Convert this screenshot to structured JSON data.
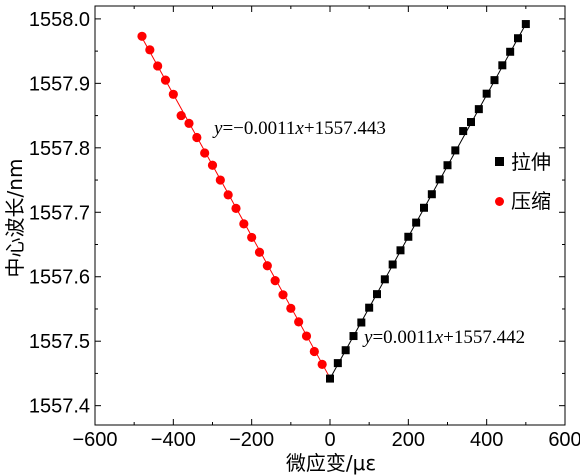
{
  "chart_data": {
    "type": "scatter",
    "xlabel": "微应变/με",
    "ylabel": "中心波长/nm",
    "xlim": [
      -600,
      600
    ],
    "ylim": [
      1557.37,
      1558.02
    ],
    "x_ticks": [
      -600,
      -400,
      -200,
      0,
      200,
      400,
      600
    ],
    "x_tick_labels": [
      "−600",
      "−400",
      "−200",
      "0",
      "200",
      "400",
      "600"
    ],
    "y_ticks": [
      1557.4,
      1557.5,
      1557.6,
      1557.7,
      1557.8,
      1557.9,
      1558.0
    ],
    "y_tick_labels": [
      "1557.4",
      "1557.5",
      "1557.6",
      "1557.7",
      "1557.8",
      "1557.9",
      "1558.0"
    ],
    "grid": false,
    "legend_position": "right",
    "series": [
      {
        "name": "拉伸",
        "marker": "square",
        "color": "#000000",
        "x": [
          0,
          20,
          40,
          60,
          80,
          100,
          120,
          140,
          160,
          180,
          200,
          220,
          240,
          260,
          280,
          300,
          320,
          340,
          360,
          380,
          400,
          420,
          440,
          460,
          480,
          500
        ],
        "y": [
          1557.442,
          1557.466,
          1557.486,
          1557.508,
          1557.529,
          1557.552,
          1557.573,
          1557.596,
          1557.619,
          1557.641,
          1557.662,
          1557.684,
          1557.707,
          1557.728,
          1557.751,
          1557.773,
          1557.796,
          1557.826,
          1557.84,
          1557.86,
          1557.884,
          1557.905,
          1557.928,
          1557.949,
          1557.97,
          1557.992
        ],
        "fit": {
          "slope": 0.0011,
          "intercept": 1557.442,
          "x_range": [
            0,
            500
          ],
          "label": "y=0.0011x+1557.442"
        }
      },
      {
        "name": "压缩",
        "marker": "circle",
        "color": "#ff0000",
        "x": [
          -20,
          -40,
          -60,
          -80,
          -100,
          -120,
          -140,
          -160,
          -180,
          -200,
          -220,
          -240,
          -260,
          -280,
          -300,
          -320,
          -340,
          -360,
          -380,
          -400,
          -420,
          -440,
          -460,
          -480
        ],
        "y": [
          1557.464,
          1557.484,
          1557.508,
          1557.53,
          1557.551,
          1557.572,
          1557.594,
          1557.617,
          1557.638,
          1557.661,
          1557.682,
          1557.706,
          1557.727,
          1557.75,
          1557.773,
          1557.792,
          1557.816,
          1557.838,
          1557.85,
          1557.883,
          1557.905,
          1557.927,
          1557.952,
          1557.973
        ],
        "fit": {
          "slope": -0.0011,
          "intercept": 1557.443,
          "x_range": [
            -480,
            0
          ],
          "label": "y=−0.0011x+1557.443"
        }
      }
    ]
  }
}
